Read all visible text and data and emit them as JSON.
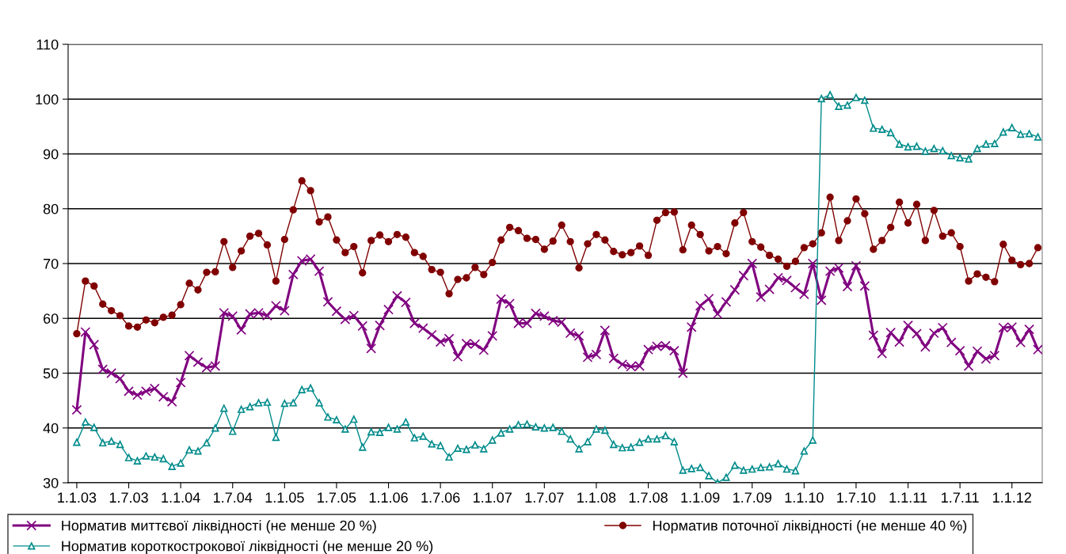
{
  "chart_data": {
    "type": "line",
    "categories": [
      "1.1.03",
      null,
      null,
      null,
      null,
      null,
      "1.7.03",
      null,
      null,
      null,
      null,
      null,
      "1.1.04",
      null,
      null,
      null,
      null,
      null,
      "1.7.04",
      null,
      null,
      null,
      null,
      null,
      "1.1.05",
      null,
      null,
      null,
      null,
      null,
      "1.7.05",
      null,
      null,
      null,
      null,
      null,
      "1.1.06",
      null,
      null,
      null,
      null,
      null,
      "1.7.06",
      null,
      null,
      null,
      null,
      null,
      "1.1.07",
      null,
      null,
      null,
      null,
      null,
      "1.7.07",
      null,
      null,
      null,
      null,
      null,
      "1.1.08",
      null,
      null,
      null,
      null,
      null,
      "1.7.08",
      null,
      null,
      null,
      null,
      null,
      "1.1.09",
      null,
      null,
      null,
      null,
      null,
      "1.7.09",
      null,
      null,
      null,
      null,
      null,
      "1.1.10",
      null,
      null,
      null,
      null,
      null,
      "1.7.10",
      null,
      null,
      null,
      null,
      null,
      "1.1.11",
      null,
      null,
      null,
      null,
      null,
      "1.7.11",
      null,
      null,
      null,
      null,
      null,
      "1.1.12",
      null,
      null,
      null
    ],
    "series": [
      {
        "name": "Норматив миттєвої ліквідності (не менше 20 %)",
        "color": "#800080",
        "marker": "cross",
        "values": [
          43.3,
          57.5,
          55.2,
          50.7,
          50.0,
          49.0,
          46.7,
          46.0,
          46.7,
          47.2,
          45.7,
          44.8,
          48.3,
          53.2,
          52.0,
          51.0,
          51.3,
          61.0,
          60.4,
          57.9,
          60.8,
          61.0,
          60.5,
          62.3,
          61.4,
          68.0,
          70.5,
          70.8,
          68.6,
          63.0,
          61.3,
          59.8,
          60.5,
          58.6,
          54.5,
          58.7,
          61.6,
          64.1,
          62.9,
          59.1,
          58.2,
          57.0,
          55.7,
          56.3,
          53.0,
          55.4,
          55.3,
          54.2,
          56.8,
          63.5,
          62.7,
          59.1,
          59.1,
          60.9,
          60.4,
          59.6,
          59.3,
          57.3,
          56.8,
          52.9,
          53.4,
          57.8,
          52.7,
          51.6,
          51.2,
          51.3,
          54.3,
          54.9,
          55.0,
          54.1,
          50.0,
          58.4,
          62.3,
          63.6,
          60.8,
          63.0,
          65.2,
          67.8,
          70.0,
          63.9,
          65.3,
          67.4,
          66.9,
          65.6,
          64.4,
          70.0,
          63.3,
          68.6,
          69.2,
          65.8,
          69.6,
          65.9,
          56.9,
          53.6,
          57.4,
          55.7,
          58.7,
          57.2,
          54.8,
          57.3,
          58.3,
          55.6,
          54.1,
          51.3,
          54.0,
          52.6,
          53.2,
          58.3,
          58.4,
          55.6,
          58.0,
          54.3
        ]
      },
      {
        "name": "Норматив поточної ліквідності (не менше 40 %)",
        "color": "#800000",
        "marker": "circle",
        "values": [
          57.2,
          66.8,
          65.9,
          62.6,
          61.4,
          60.5,
          58.6,
          58.4,
          59.7,
          59.2,
          60.2,
          60.6,
          62.5,
          66.4,
          65.2,
          68.4,
          68.5,
          74.0,
          69.3,
          72.3,
          75.0,
          75.5,
          73.4,
          66.8,
          74.4,
          79.8,
          85.1,
          83.3,
          77.6,
          78.5,
          74.3,
          72.0,
          73.1,
          68.3,
          74.2,
          75.2,
          74.0,
          75.3,
          74.8,
          72.0,
          71.3,
          68.9,
          68.4,
          64.5,
          67.1,
          67.4,
          69.3,
          68.0,
          70.2,
          74.3,
          76.6,
          76.0,
          74.6,
          74.4,
          72.6,
          74.1,
          77.0,
          74.0,
          69.2,
          73.6,
          75.3,
          74.3,
          72.2,
          71.6,
          72.0,
          73.2,
          71.5,
          77.9,
          79.3,
          79.4,
          72.5,
          77.0,
          75.3,
          72.3,
          73.1,
          71.8,
          77.4,
          79.3,
          74.0,
          73.0,
          71.5,
          70.8,
          69.5,
          70.4,
          72.9,
          73.6,
          75.6,
          82.1,
          74.2,
          77.8,
          81.8,
          79.1,
          72.6,
          74.2,
          76.6,
          81.2,
          77.4,
          80.8,
          74.2,
          79.7,
          75.0,
          75.6,
          73.1,
          66.8,
          68.1,
          67.5,
          66.7,
          73.5,
          70.6,
          69.8,
          70.0,
          72.9
        ]
      },
      {
        "name": "Норматив короткострокової ліквідності (не менше 20 %)",
        "color": "#008b8b",
        "marker": "triangle",
        "values": [
          37.4,
          41.1,
          40.1,
          37.3,
          37.6,
          37.0,
          34.6,
          34.0,
          34.9,
          34.7,
          34.4,
          33.0,
          33.6,
          36.0,
          35.8,
          37.3,
          40.0,
          43.6,
          39.4,
          43.4,
          43.9,
          44.6,
          44.7,
          38.3,
          44.5,
          44.6,
          47.0,
          47.3,
          44.6,
          42.0,
          41.5,
          39.8,
          41.6,
          36.5,
          39.3,
          39.2,
          40.1,
          39.8,
          41.1,
          38.2,
          38.5,
          37.1,
          36.8,
          34.7,
          36.3,
          36.1,
          36.9,
          36.2,
          37.8,
          39.1,
          39.8,
          40.6,
          40.7,
          40.2,
          40.0,
          40.1,
          39.4,
          38.0,
          36.2,
          37.5,
          39.8,
          39.6,
          37.0,
          36.4,
          36.5,
          37.4,
          38.0,
          38.0,
          38.6,
          37.5,
          32.3,
          32.6,
          32.8,
          31.3,
          30.0,
          31.0,
          33.2,
          32.3,
          32.5,
          32.8,
          32.9,
          33.5,
          32.5,
          32.2,
          35.8,
          37.8,
          100.1,
          100.8,
          98.7,
          98.9,
          100.3,
          99.8,
          94.7,
          94.5,
          93.9,
          91.8,
          91.3,
          91.4,
          90.5,
          91.0,
          90.6,
          89.7,
          89.3,
          89.1,
          91.0,
          91.8,
          91.9,
          94.0,
          94.8,
          93.6,
          93.7,
          93.1
        ]
      }
    ],
    "ylim": [
      30,
      110
    ],
    "yticks": [
      30,
      40,
      50,
      60,
      70,
      80,
      90,
      100,
      110
    ],
    "grid": "y",
    "legend": "bottom",
    "line_style": "solid"
  }
}
